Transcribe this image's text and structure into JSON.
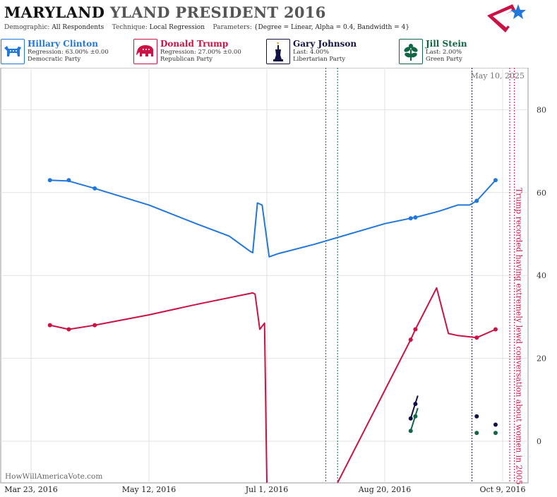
{
  "header": {
    "title_state": "MARYLAND",
    "title_rest": "YLAND PRESIDENT 2016",
    "demographic_label": "Demographic:",
    "demographic_value": "All Respondents",
    "technique_label": "Technique:",
    "technique_value": "Local Regression",
    "parameters_label": "Parameters:",
    "parameters_value": "{Degree = Linear, Alpha = 0.4, Bandwidth = 4}"
  },
  "candidates": [
    {
      "name": "Hillary Clinton",
      "stat": "Regression: 63.00% ±0.00",
      "party": "Democratic Party",
      "color": "#2277dd",
      "icon": "donkey-icon"
    },
    {
      "name": "Donald Trump",
      "stat": "Regression: 27.00% ±0.00",
      "party": "Republican Party",
      "color": "#cc1144",
      "icon": "elephant-icon"
    },
    {
      "name": "Gary Johnson",
      "stat": "Last: 4.00%",
      "party": "Libertarian Party",
      "color": "#111144",
      "icon": "liberty-torch-icon"
    },
    {
      "name": "Jill Stein",
      "stat": "Last: 2.00%",
      "party": "Green Party",
      "color": "#116644",
      "icon": "plant-icon"
    }
  ],
  "chart_data": {
    "type": "line",
    "watermark": "HowWillAmericaVote.com",
    "date_stamp": "May 10, 2025",
    "x_start": "2016-03-23",
    "x_ticks": [
      "Mar 23, 2016",
      "May 12, 2016",
      "Jul 1, 2016",
      "Aug 20, 2016",
      "Oct 9, 2016"
    ],
    "y_ticks": [
      0,
      20,
      40,
      60,
      80
    ],
    "ylim": [
      -10,
      90
    ],
    "grid": true,
    "series": [
      {
        "name": "Hillary Clinton",
        "color": "#2277dd",
        "points": [
          {
            "date": "2016-03-31",
            "value": 63
          },
          {
            "date": "2016-04-08",
            "value": 63
          },
          {
            "date": "2016-04-19",
            "value": 61
          },
          {
            "date": "2016-08-31",
            "value": 53.8
          },
          {
            "date": "2016-09-02",
            "value": 54
          },
          {
            "date": "2016-09-28",
            "value": 58
          },
          {
            "date": "2016-10-06",
            "value": 63
          }
        ],
        "line": [
          {
            "date": "2016-03-31",
            "value": 63
          },
          {
            "date": "2016-04-08",
            "value": 62.8
          },
          {
            "date": "2016-04-19",
            "value": 61
          },
          {
            "date": "2016-05-12",
            "value": 57
          },
          {
            "date": "2016-06-01",
            "value": 52.5
          },
          {
            "date": "2016-06-15",
            "value": 49.5
          },
          {
            "date": "2016-06-24",
            "value": 45.8
          },
          {
            "date": "2016-06-25",
            "value": 45.5
          },
          {
            "date": "2016-06-27",
            "value": 57.5
          },
          {
            "date": "2016-06-29",
            "value": 57
          },
          {
            "date": "2016-07-02",
            "value": 44.5
          },
          {
            "date": "2016-07-06",
            "value": 45.3
          },
          {
            "date": "2016-07-21",
            "value": 47.5
          },
          {
            "date": "2016-08-05",
            "value": 50
          },
          {
            "date": "2016-08-20",
            "value": 52.5
          },
          {
            "date": "2016-08-31",
            "value": 53.8
          },
          {
            "date": "2016-09-02",
            "value": 54
          },
          {
            "date": "2016-09-12",
            "value": 55.5
          },
          {
            "date": "2016-09-20",
            "value": 57
          },
          {
            "date": "2016-09-25",
            "value": 57
          },
          {
            "date": "2016-09-28",
            "value": 58
          },
          {
            "date": "2016-10-06",
            "value": 63
          }
        ]
      },
      {
        "name": "Donald Trump",
        "color": "#cc1144",
        "points": [
          {
            "date": "2016-03-31",
            "value": 28
          },
          {
            "date": "2016-04-08",
            "value": 27
          },
          {
            "date": "2016-04-19",
            "value": 28
          },
          {
            "date": "2016-08-31",
            "value": 24.5
          },
          {
            "date": "2016-09-02",
            "value": 27
          },
          {
            "date": "2016-09-28",
            "value": 25
          },
          {
            "date": "2016-10-06",
            "value": 27
          }
        ],
        "line": [
          {
            "date": "2016-03-31",
            "value": 28
          },
          {
            "date": "2016-04-08",
            "value": 27
          },
          {
            "date": "2016-04-19",
            "value": 28
          },
          {
            "date": "2016-05-12",
            "value": 30.5
          },
          {
            "date": "2016-06-01",
            "value": 33
          },
          {
            "date": "2016-06-25",
            "value": 35.8
          },
          {
            "date": "2016-06-26",
            "value": 35.5
          },
          {
            "date": "2016-06-28",
            "value": 27
          },
          {
            "date": "2016-06-30",
            "value": 28.5
          },
          {
            "date": "2016-07-01",
            "value": -10
          }
        ],
        "line2": [
          {
            "date": "2016-07-31",
            "value": -10
          },
          {
            "date": "2016-08-31",
            "value": 24.5
          },
          {
            "date": "2016-09-02",
            "value": 27
          },
          {
            "date": "2016-09-11",
            "value": 37
          },
          {
            "date": "2016-09-16",
            "value": 26
          },
          {
            "date": "2016-09-20",
            "value": 25.5
          },
          {
            "date": "2016-09-28",
            "value": 25
          },
          {
            "date": "2016-10-06",
            "value": 27
          }
        ]
      },
      {
        "name": "Gary Johnson",
        "color": "#111144",
        "points": [
          {
            "date": "2016-08-31",
            "value": 5.5
          },
          {
            "date": "2016-09-02",
            "value": 9
          },
          {
            "date": "2016-09-28",
            "value": 6
          },
          {
            "date": "2016-10-06",
            "value": 4
          }
        ],
        "line": [
          {
            "date": "2016-08-31",
            "value": 5.5
          },
          {
            "date": "2016-09-03",
            "value": 11
          }
        ]
      },
      {
        "name": "Jill Stein",
        "color": "#116644",
        "points": [
          {
            "date": "2016-08-31",
            "value": 2.5
          },
          {
            "date": "2016-09-02",
            "value": 6
          },
          {
            "date": "2016-09-28",
            "value": 2
          },
          {
            "date": "2016-10-06",
            "value": 2
          }
        ],
        "line": [
          {
            "date": "2016-08-31",
            "value": 2.5
          },
          {
            "date": "2016-09-03",
            "value": 8
          }
        ]
      }
    ],
    "event_lines": [
      {
        "date": "2016-07-26",
        "color": "#cc1144"
      },
      {
        "date": "2016-07-31",
        "color": "#116644"
      },
      {
        "date": "2016-09-26",
        "color": "#111144"
      },
      {
        "date": "2016-10-12",
        "color": "#cc1144"
      },
      {
        "date": "2016-10-14",
        "color": "#cc1144"
      }
    ],
    "annotation": {
      "text": "Trump recorded having extremely lewd conversation about women in 2005",
      "date": "2016-10-07",
      "color": "#cc1144"
    }
  }
}
